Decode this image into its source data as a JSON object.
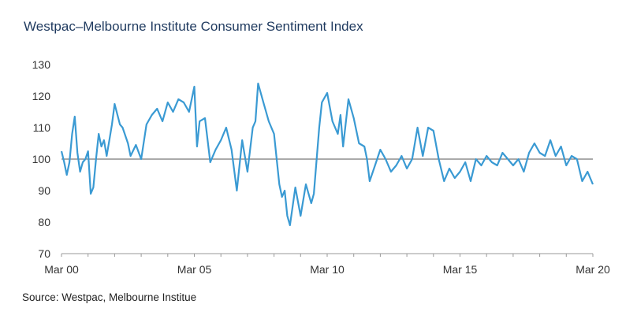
{
  "title": "Westpac–Melbourne Institute Consumer Sentiment Index",
  "source": "Source: Westpac, Melbourne Institue",
  "colors": {
    "line": "#3a9ad3",
    "reference": "#555555",
    "axis": "#9a9a9a",
    "text": "#333333"
  },
  "chart_data": {
    "type": "line",
    "title": "Westpac–Melbourne Institute Consumer Sentiment Index",
    "xlabel": "",
    "ylabel": "",
    "xlim": [
      2000.0,
      2020.0
    ],
    "ylim": [
      70,
      130
    ],
    "y_ticks": [
      "70",
      "80",
      "90",
      "100",
      "110",
      "120",
      "130"
    ],
    "y_tick_values": [
      70,
      80,
      90,
      100,
      110,
      120,
      130
    ],
    "x_ticks": [
      "Mar 00",
      "Mar 05",
      "Mar 10",
      "Mar 15",
      "Mar 20"
    ],
    "x_tick_values": [
      2000,
      2005,
      2010,
      2015,
      2020
    ],
    "reference_line": 100,
    "grid": false,
    "legend": "none",
    "series": [
      {
        "x": [
          2000.0,
          2000.1,
          2000.2,
          2000.3,
          2000.4,
          2000.5,
          2000.6,
          2000.7,
          2000.8,
          2000.9,
          2001.0,
          2001.1,
          2001.2,
          2001.3,
          2001.4,
          2001.5,
          2001.6,
          2001.7,
          2001.8,
          2001.9,
          2002.0,
          2002.2,
          2002.3,
          2002.5,
          2002.6,
          2002.8,
          2003.0,
          2003.2,
          2003.4,
          2003.6,
          2003.8,
          2004.0,
          2004.2,
          2004.4,
          2004.6,
          2004.8,
          2005.0,
          2005.1,
          2005.2,
          2005.4,
          2005.6,
          2005.8,
          2006.0,
          2006.2,
          2006.4,
          2006.6,
          2006.8,
          2007.0,
          2007.2,
          2007.3,
          2007.4,
          2007.6,
          2007.8,
          2008.0,
          2008.2,
          2008.3,
          2008.4,
          2008.5,
          2008.6,
          2008.8,
          2009.0,
          2009.2,
          2009.4,
          2009.5,
          2009.7,
          2009.8,
          2010.0,
          2010.2,
          2010.4,
          2010.5,
          2010.6,
          2010.8,
          2011.0,
          2011.2,
          2011.4,
          2011.5,
          2011.6,
          2011.8,
          2012.0,
          2012.2,
          2012.4,
          2012.6,
          2012.8,
          2013.0,
          2013.2,
          2013.4,
          2013.6,
          2013.8,
          2014.0,
          2014.2,
          2014.4,
          2014.6,
          2014.8,
          2015.0,
          2015.2,
          2015.4,
          2015.6,
          2015.8,
          2016.0,
          2016.2,
          2016.4,
          2016.6,
          2016.8,
          2017.0,
          2017.2,
          2017.4,
          2017.6,
          2017.8,
          2018.0,
          2018.2,
          2018.4,
          2018.6,
          2018.8,
          2019.0,
          2019.2,
          2019.4,
          2019.6,
          2019.8,
          2020.0
        ],
        "values": [
          102.5,
          99,
          95,
          99,
          108,
          113.5,
          102,
          96,
          99,
          100,
          102.5,
          89,
          91,
          100,
          108,
          104,
          106,
          101,
          106,
          111,
          117.5,
          111,
          110,
          105,
          101,
          104.5,
          100,
          111,
          114,
          116,
          112,
          118,
          115,
          119,
          118,
          115,
          123,
          104,
          112,
          113,
          99,
          103,
          106,
          110,
          103,
          90,
          106,
          96,
          110,
          112,
          124,
          118,
          112,
          108,
          92,
          88,
          90,
          82,
          79,
          91,
          82,
          92,
          86,
          89,
          110,
          118,
          121,
          112,
          108,
          114,
          104,
          119,
          113,
          105,
          104,
          100,
          93,
          98,
          103,
          100,
          96,
          98,
          101,
          97,
          100,
          110,
          101,
          110,
          109,
          100,
          93,
          97,
          94,
          96,
          99,
          93,
          100,
          98,
          101,
          99,
          98,
          102,
          100,
          98,
          100,
          96,
          102,
          105,
          102,
          101,
          106,
          101,
          104,
          98,
          101,
          100,
          93,
          96,
          92
        ]
      }
    ]
  }
}
